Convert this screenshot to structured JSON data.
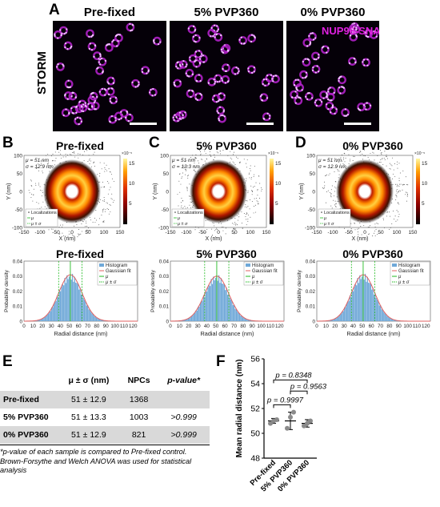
{
  "panels": {
    "A": "A",
    "B": "B",
    "C": "C",
    "D": "D",
    "E": "E",
    "F": "F"
  },
  "storm": {
    "row_label": "STORM",
    "titles": [
      "Pre-fixed",
      "5% PVP360",
      "0% PVP360"
    ],
    "overlay_label": "NUP96-SNAP",
    "overlay_color": "#e020e0"
  },
  "density_plots": {
    "titles": [
      "Pre-fixed",
      "5% PVP360",
      "0% PVP360"
    ],
    "stats": [
      {
        "mu": "μ = 51 nm",
        "sigma": "σ = 12.9 nm"
      },
      {
        "mu": "μ = 51 nm",
        "sigma": "σ = 13.3 nm"
      },
      {
        "mu": "μ = 51 nm",
        "sigma": "σ = 12.9 nm"
      }
    ],
    "xlabel": "X (nm)",
    "ylabel": "Y (nm)",
    "x_ticks": [
      "-150",
      "-100",
      "-50",
      "0",
      "50",
      "100",
      "150"
    ],
    "y_ticks": [
      "100",
      "50",
      "0",
      "-50",
      "-100"
    ],
    "colorbar_ticks": [
      "15",
      "10",
      "5"
    ],
    "colorbar_exp": "×10⁻⁵",
    "legend": [
      "Localizations",
      "μ",
      "μ ± σ"
    ]
  },
  "histograms": {
    "titles": [
      "Pre-fixed",
      "5% PVP360",
      "0% PVP360"
    ],
    "xlabel": "Radial distance (nm)",
    "ylabel": "Probability density",
    "legend": [
      "Histogram",
      "Gaussian fit",
      "μ",
      "μ ± σ"
    ],
    "colors": {
      "bars": "#6fa8d8",
      "fit": "#e06060",
      "mu": "#22bb22"
    }
  },
  "table": {
    "headers": [
      "",
      "μ ± σ (nm)",
      "NPCs",
      "p-value*"
    ],
    "rows": [
      {
        "label": "Pre-fixed",
        "value": "51 ± 12.9",
        "npcs": "1368",
        "p": ""
      },
      {
        "label": "5% PVP360",
        "value": "51 ± 13.3",
        "npcs": "1003",
        "p": ">0.999"
      },
      {
        "label": "0% PVP360",
        "value": "51 ± 12.9",
        "npcs": "821",
        "p": ">0.999"
      }
    ],
    "footnote": "*p-value of each sample is compared to Pre-fixed control. Brown-Forsythe and Welch ANOVA was used for statistical analysis"
  },
  "chart_data": [
    {
      "type": "bar",
      "title": "Pre-fixed",
      "xlabel": "Radial distance (nm)",
      "ylabel": "Probability density",
      "xlim": [
        0,
        125
      ],
      "ylim": [
        0,
        0.04
      ],
      "x_ticks": [
        0,
        10,
        20,
        30,
        40,
        50,
        60,
        70,
        80,
        90,
        100,
        110,
        120
      ],
      "y_ticks": [
        0,
        0.01,
        0.02,
        0.03,
        0.04
      ],
      "mu": 51,
      "sigma": 12.9,
      "series": [
        {
          "name": "Gaussian fit",
          "mean": 51,
          "sd": 12.9
        }
      ]
    },
    {
      "type": "bar",
      "title": "5% PVP360",
      "xlabel": "Radial distance (nm)",
      "ylabel": "Probability density",
      "xlim": [
        0,
        125
      ],
      "ylim": [
        0,
        0.04
      ],
      "x_ticks": [
        0,
        10,
        20,
        30,
        40,
        50,
        60,
        70,
        80,
        90,
        100,
        110,
        120
      ],
      "y_ticks": [
        0,
        0.01,
        0.02,
        0.03,
        0.04
      ],
      "mu": 51,
      "sigma": 13.3,
      "series": [
        {
          "name": "Gaussian fit",
          "mean": 51,
          "sd": 13.3
        }
      ]
    },
    {
      "type": "bar",
      "title": "0% PVP360",
      "xlabel": "Radial distance (nm)",
      "ylabel": "Probability density",
      "xlim": [
        0,
        125
      ],
      "ylim": [
        0,
        0.04
      ],
      "x_ticks": [
        0,
        10,
        20,
        30,
        40,
        50,
        60,
        70,
        80,
        90,
        100,
        110,
        120
      ],
      "y_ticks": [
        0,
        0.01,
        0.02,
        0.03,
        0.04
      ],
      "mu": 51,
      "sigma": 12.9,
      "series": [
        {
          "name": "Gaussian fit",
          "mean": 51,
          "sd": 12.9
        }
      ]
    },
    {
      "type": "scatter",
      "title": "",
      "ylabel": "Mean radial distance (nm)",
      "ylim": [
        48,
        56
      ],
      "y_ticks": [
        48,
        50,
        52,
        54,
        56
      ],
      "categories": [
        "Pre-fixed",
        "5% PVP360",
        "0% PVP360"
      ],
      "points": [
        [
          50.8,
          51.0,
          51.1
        ],
        [
          50.4,
          51.3,
          51.7
        ],
        [
          50.6,
          50.8,
          51.0
        ]
      ],
      "means": [
        51.0,
        51.0,
        50.8
      ],
      "sds": [
        0.2,
        0.7,
        0.3
      ],
      "comparisons": [
        {
          "pair": [
            0,
            1
          ],
          "label": "p = 0.9997"
        },
        {
          "pair": [
            1,
            2
          ],
          "label": "p = 0.9563"
        },
        {
          "pair": [
            0,
            2
          ],
          "label": "p = 0.8348"
        }
      ]
    }
  ]
}
